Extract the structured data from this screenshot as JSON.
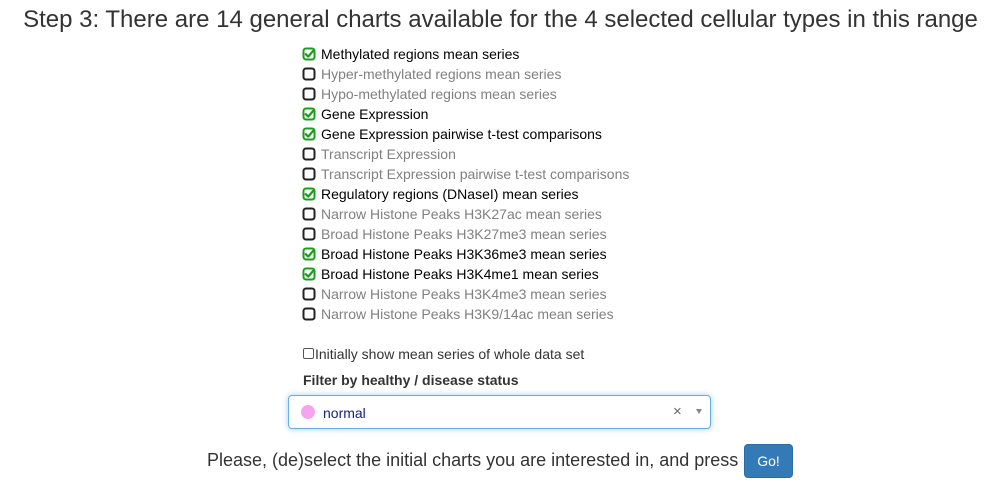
{
  "title": "Step 3: There are 14 general charts available for the 4 selected cellular types in this range",
  "charts": [
    {
      "label": "Methylated regions mean series",
      "checked": true
    },
    {
      "label": "Hyper-methylated regions mean series",
      "checked": false
    },
    {
      "label": "Hypo-methylated regions mean series",
      "checked": false
    },
    {
      "label": "Gene Expression",
      "checked": true
    },
    {
      "label": "Gene Expression pairwise t-test comparisons",
      "checked": true
    },
    {
      "label": "Transcript Expression",
      "checked": false
    },
    {
      "label": "Transcript Expression pairwise t-test comparisons",
      "checked": false
    },
    {
      "label": "Regulatory regions (DNaseI) mean series",
      "checked": true
    },
    {
      "label": "Narrow Histone Peaks H3K27ac mean series",
      "checked": false
    },
    {
      "label": "Broad Histone Peaks H3K27me3 mean series",
      "checked": false
    },
    {
      "label": "Broad Histone Peaks H3K36me3 mean series",
      "checked": true
    },
    {
      "label": "Broad Histone Peaks H3K4me1 mean series",
      "checked": true
    },
    {
      "label": "Narrow Histone Peaks H3K4me3 mean series",
      "checked": false
    },
    {
      "label": "Narrow Histone Peaks H3K9/14ac mean series",
      "checked": false
    }
  ],
  "whole_dataset": {
    "label": "Initially show mean series of whole data set",
    "checked": false
  },
  "filter": {
    "label": "Filter by healthy / disease status",
    "selected": "normal",
    "dot_color": "#f5a4f0",
    "clear_glyph": "×"
  },
  "prompt": "Please, (de)select the initial charts you are interested in, and press",
  "go_label": "Go!",
  "icons": {
    "checked": "square-check-icon",
    "unchecked": "square-icon"
  },
  "colors": {
    "check_green": "#1a9e1a",
    "checked_text": "#000000",
    "unchecked_text": "#808080",
    "button_blue": "#337ab7"
  }
}
